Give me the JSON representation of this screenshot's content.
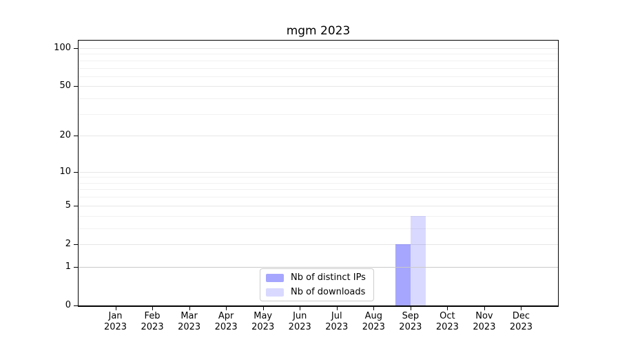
{
  "chart_data": {
    "type": "bar",
    "title": "mgm 2023",
    "categories": [
      "Jan",
      "Feb",
      "Mar",
      "Apr",
      "May",
      "Jun",
      "Jul",
      "Aug",
      "Sep",
      "Oct",
      "Nov",
      "Dec"
    ],
    "x_year_label": "2023",
    "series": [
      {
        "name": "Nb of distinct IPs",
        "color": "rgba(0,0,255,0.35)",
        "values": [
          0,
          0,
          0,
          0,
          0,
          0,
          0,
          0,
          2,
          0,
          0,
          0
        ]
      },
      {
        "name": "Nb of downloads",
        "color": "rgba(0,0,255,0.15)",
        "values": [
          0,
          0,
          0,
          0,
          0,
          0,
          0,
          0,
          4,
          0,
          0,
          0
        ]
      }
    ],
    "y_axis": {
      "scale": "log1p",
      "tick_values": [
        100,
        50,
        20,
        10,
        5,
        2,
        1,
        0
      ],
      "minor_grid_values": [
        3,
        4,
        6,
        7,
        8,
        9,
        30,
        40,
        60,
        70,
        80,
        90
      ],
      "major_grid_values": [
        2,
        5,
        10,
        20,
        50,
        100
      ],
      "emphasized_grid_value": 1,
      "top_value": 114.6,
      "ylim": [
        0,
        114.6
      ]
    },
    "xlim_month_slots": 13,
    "legend": {
      "entries": [
        "Nb of distinct IPs",
        "Nb of downloads"
      ],
      "position": "bottom-center"
    },
    "grid": true
  },
  "colors": {
    "background": "#ffffff",
    "axis": "#000000",
    "text": "#000000",
    "grid_minor": "#f1f1f1",
    "grid_major": "#e6e6e6",
    "grid_emphasized": "#c9c9c9",
    "legend_border": "#cccccc",
    "bar_distinct_ips": "rgba(0,0,255,0.35)",
    "bar_downloads": "rgba(0,0,255,0.15)"
  }
}
